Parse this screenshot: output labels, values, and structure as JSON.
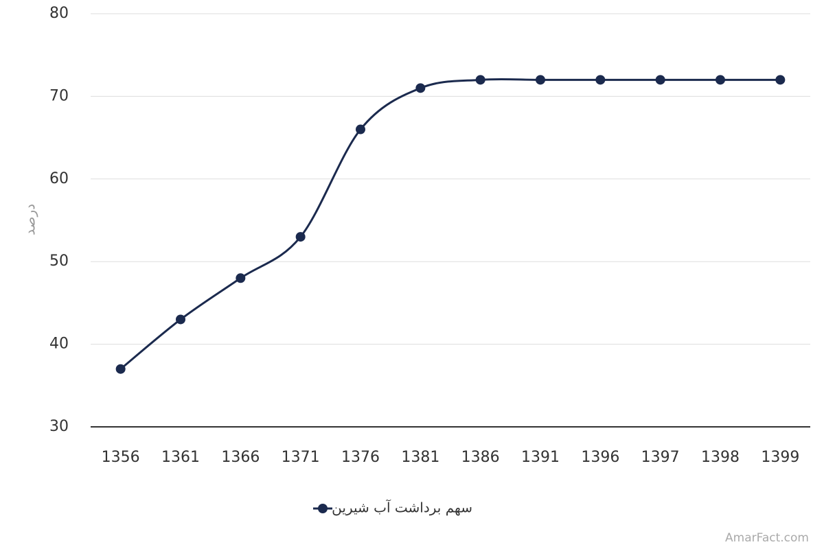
{
  "chart_data": {
    "type": "line",
    "y_label": "درصد",
    "categories": [
      "1356",
      "1361",
      "1366",
      "1371",
      "1376",
      "1381",
      "1386",
      "1391",
      "1396",
      "1397",
      "1398",
      "1399"
    ],
    "series": [
      {
        "name": "سهم برداشت آب شیرین",
        "color": "#1b2a4e",
        "values": [
          37,
          43,
          48,
          53,
          66,
          71,
          72,
          72,
          72,
          72,
          72,
          72
        ]
      }
    ],
    "ylim": [
      30,
      80
    ],
    "yticks": [
      30,
      40,
      50,
      60,
      70,
      80
    ],
    "grid": true,
    "smooth": true,
    "legend": "bottom",
    "watermark": "AmarFact.com"
  }
}
